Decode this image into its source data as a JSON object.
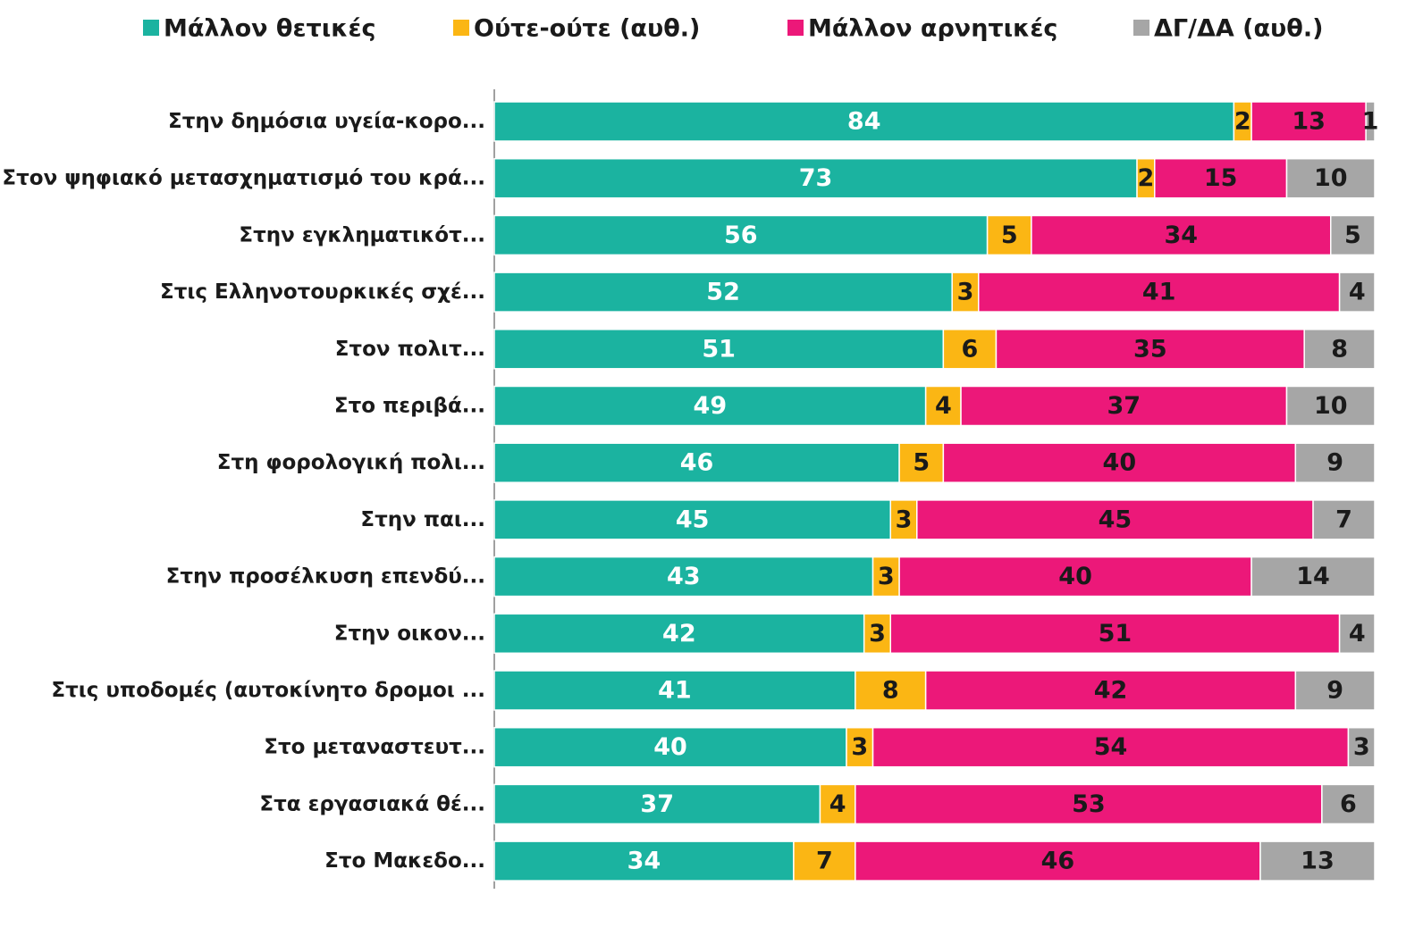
{
  "chart_data": {
    "type": "stacked_bar_horizontal",
    "categories": [
      "Στην δημόσια υγεία-κορο...",
      "Στον ψηφιακό μετασχηματισμό του κρά...",
      "Στην εγκληματικότ...",
      "Στις Ελληνοτουρκικές σχέ...",
      "Στον πολιτ...",
      "Στο περιβά...",
      "Στη φορολογική πολι...",
      "Στην παι...",
      "Στην προσέλκυση επενδύ...",
      "Στην οικον...",
      "Στις υποδομές (αυτοκίνητο δρομοι ...",
      "Στο μεταναστευτ...",
      "Στα εργασιακά θέ...",
      "Στο Μακεδο..."
    ],
    "series": [
      {
        "name": "Μάλλον θετικές",
        "color": "#1bb3a0",
        "values": [
          84,
          73,
          56,
          52,
          51,
          49,
          46,
          45,
          43,
          42,
          41,
          40,
          37,
          34
        ]
      },
      {
        "name": "Ούτε-ούτε  (αυθ.)",
        "color": "#fbb614",
        "values": [
          2,
          2,
          5,
          3,
          6,
          4,
          5,
          3,
          3,
          3,
          8,
          3,
          4,
          7
        ]
      },
      {
        "name": "Μάλλον αρνητικές",
        "color": "#ec1879",
        "values": [
          13,
          15,
          34,
          41,
          35,
          37,
          40,
          45,
          40,
          51,
          42,
          54,
          53,
          46
        ]
      },
      {
        "name": "ΔΓ/ΔΑ (αυθ.)",
        "color": "#a6a6a6",
        "values": [
          1,
          10,
          5,
          4,
          8,
          10,
          9,
          7,
          14,
          4,
          9,
          3,
          6,
          13
        ]
      }
    ],
    "xlim": [
      0,
      100
    ],
    "legend": "top"
  }
}
